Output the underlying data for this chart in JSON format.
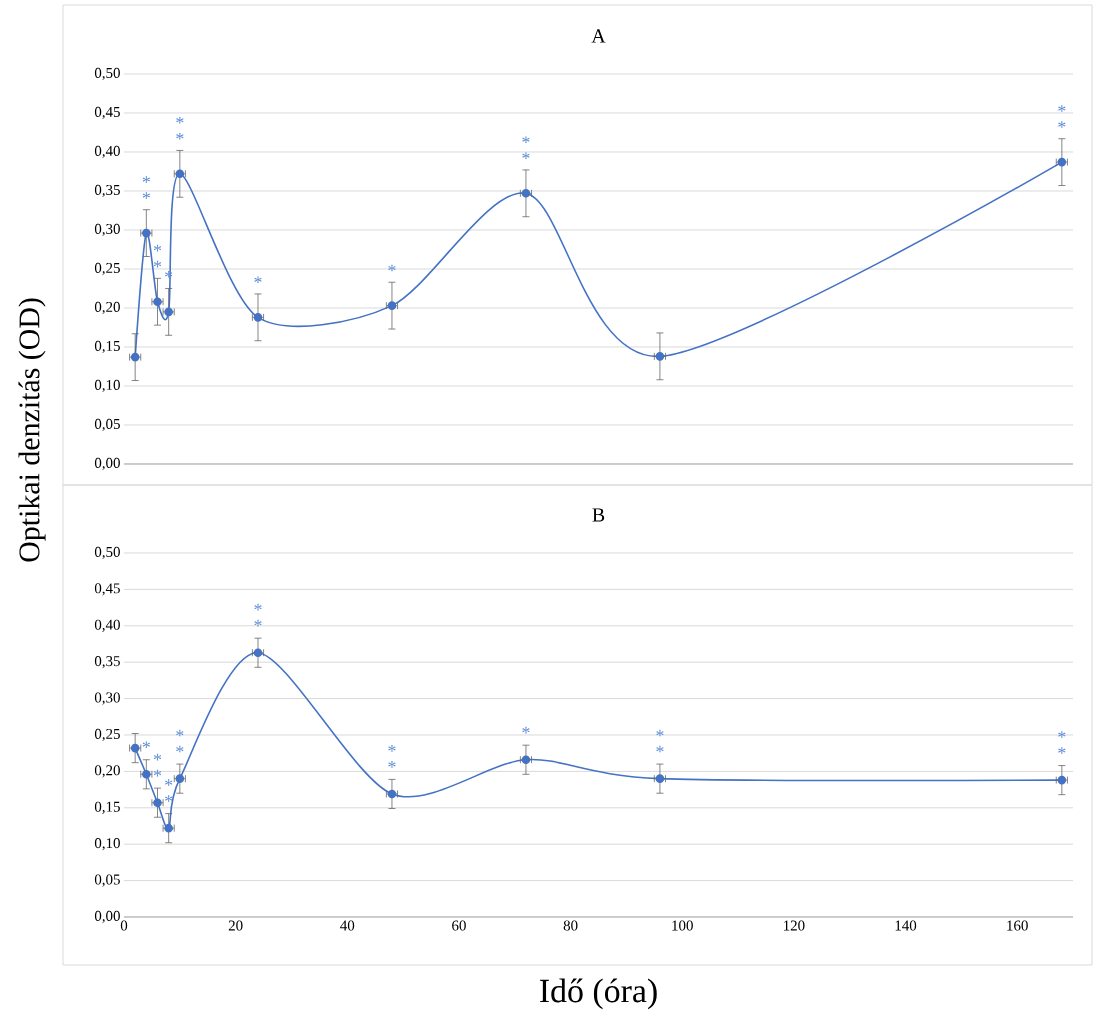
{
  "chart_data": [
    {
      "type": "line",
      "title": "A",
      "ylabel": "Optikai denzitás (OD)",
      "xlim": [
        0,
        170
      ],
      "ylim": [
        0,
        0.5
      ],
      "xticks": [
        0,
        20,
        40,
        60,
        80,
        100,
        120,
        140,
        160
      ],
      "yticks": [
        {
          "value": 0,
          "label": "0,00"
        },
        {
          "value": 0.05,
          "label": "0,05"
        },
        {
          "value": 0.1,
          "label": "0,10"
        },
        {
          "value": 0.15,
          "label": "0,15"
        },
        {
          "value": 0.2,
          "label": "0,20"
        },
        {
          "value": 0.25,
          "label": "0,25"
        },
        {
          "value": 0.3,
          "label": "0,30"
        },
        {
          "value": 0.35,
          "label": "0,35"
        },
        {
          "value": 0.4,
          "label": "0,40"
        },
        {
          "value": 0.45,
          "label": "0,45"
        },
        {
          "value": 0.5,
          "label": "0,50"
        }
      ],
      "tick_labels": "y",
      "grid": "y",
      "marker": "circle",
      "series": [
        {
          "color": "#4472c4",
          "x": [
            2,
            4,
            6,
            8,
            10,
            24,
            48,
            72,
            96,
            168
          ],
          "values": [
            0.137,
            0.296,
            0.208,
            0.195,
            0.372,
            0.188,
            0.203,
            0.347,
            0.138,
            0.387
          ],
          "errors": [
            0.03,
            0.03,
            0.03,
            0.03,
            0.03,
            0.03,
            0.03,
            0.03,
            0.03,
            0.03
          ],
          "xerrors": [
            1,
            1,
            1,
            1,
            1,
            1,
            1,
            1,
            1,
            1
          ]
        }
      ],
      "annotations": [
        {
          "text": "*",
          "x": 4,
          "y": 0.296
        },
        {
          "text": "*",
          "x": 4,
          "y": 0.296
        },
        {
          "text": "*",
          "x": 6,
          "y": 0.208
        },
        {
          "text": "*",
          "x": 6,
          "y": 0.208
        },
        {
          "text": "*",
          "x": 8,
          "y": 0.195
        },
        {
          "text": "*",
          "x": 10,
          "y": 0.372
        },
        {
          "text": "*",
          "x": 10,
          "y": 0.372
        },
        {
          "text": "*",
          "x": 24,
          "y": 0.188
        },
        {
          "text": "*",
          "x": 48,
          "y": 0.203
        },
        {
          "text": "*",
          "x": 72,
          "y": 0.347
        },
        {
          "text": "*",
          "x": 72,
          "y": 0.347
        },
        {
          "text": "*",
          "x": 168,
          "y": 0.387
        },
        {
          "text": "*",
          "x": 168,
          "y": 0.387
        }
      ]
    },
    {
      "type": "line",
      "title": "B",
      "xlabel": "Idő (óra)",
      "xlim": [
        0,
        170
      ],
      "ylim": [
        0,
        0.5
      ],
      "xticks": [
        0,
        20,
        40,
        60,
        80,
        100,
        120,
        140,
        160
      ],
      "yticks": [
        {
          "value": 0,
          "label": "0,00"
        },
        {
          "value": 0.05,
          "label": "0,05"
        },
        {
          "value": 0.1,
          "label": "0,10"
        },
        {
          "value": 0.15,
          "label": "0,15"
        },
        {
          "value": 0.2,
          "label": "0,20"
        },
        {
          "value": 0.25,
          "label": "0,25"
        },
        {
          "value": 0.3,
          "label": "0,30"
        },
        {
          "value": 0.35,
          "label": "0,35"
        },
        {
          "value": 0.4,
          "label": "0,40"
        },
        {
          "value": 0.45,
          "label": "0,45"
        },
        {
          "value": 0.5,
          "label": "0,50"
        }
      ],
      "grid": "y",
      "marker": "circle",
      "series": [
        {
          "color": "#4472c4",
          "x": [
            2,
            4,
            6,
            8,
            10,
            24,
            48,
            72,
            96,
            168
          ],
          "values": [
            0.232,
            0.196,
            0.157,
            0.122,
            0.19,
            0.363,
            0.169,
            0.216,
            0.19,
            0.188
          ],
          "errors": [
            0.02,
            0.02,
            0.02,
            0.02,
            0.02,
            0.02,
            0.02,
            0.02,
            0.02,
            0.02
          ],
          "xerrors": [
            1,
            1,
            1,
            1,
            1,
            1,
            1,
            1,
            1,
            1
          ]
        }
      ],
      "annotations": [
        {
          "text": "*",
          "x": 4,
          "y": 0.196
        },
        {
          "text": "*",
          "x": 6,
          "y": 0.157
        },
        {
          "text": "*",
          "x": 6,
          "y": 0.157
        },
        {
          "text": "*",
          "x": 8,
          "y": 0.122
        },
        {
          "text": "*",
          "x": 8,
          "y": 0.122
        },
        {
          "text": "*",
          "x": 10,
          "y": 0.19
        },
        {
          "text": "*",
          "x": 10,
          "y": 0.19
        },
        {
          "text": "*",
          "x": 24,
          "y": 0.363
        },
        {
          "text": "*",
          "x": 24,
          "y": 0.363
        },
        {
          "text": "*",
          "x": 48,
          "y": 0.169
        },
        {
          "text": "*",
          "x": 48,
          "y": 0.169
        },
        {
          "text": "*",
          "x": 72,
          "y": 0.216
        },
        {
          "text": "*",
          "x": 96,
          "y": 0.19
        },
        {
          "text": "*",
          "x": 96,
          "y": 0.19
        },
        {
          "text": "*",
          "x": 168,
          "y": 0.188
        },
        {
          "text": "*",
          "x": 168,
          "y": 0.188
        }
      ]
    }
  ]
}
